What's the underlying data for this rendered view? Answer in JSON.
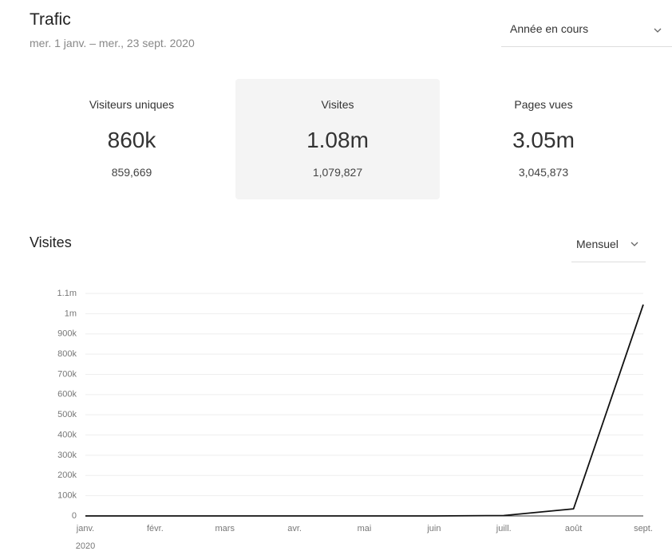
{
  "header": {
    "title": "Trafic",
    "subtitle": "mer. 1 janv. – mer., 23 sept. 2020",
    "range_select": "Année en cours"
  },
  "stats": [
    {
      "label": "Visiteurs uniques",
      "short": "860k",
      "exact": "859,669"
    },
    {
      "label": "Visites",
      "short": "1.08m",
      "exact": "1,079,827"
    },
    {
      "label": "Pages vues",
      "short": "3.05m",
      "exact": "3,045,873"
    }
  ],
  "section": {
    "title": "Visites",
    "period_select": "Mensuel"
  },
  "chart_data": {
    "type": "line",
    "categories": [
      "janv.",
      "févr.",
      "mars",
      "avr.",
      "mai",
      "juin",
      "juill.",
      "août",
      "sept."
    ],
    "year_label": "2020",
    "series": [
      {
        "name": "Visites",
        "color": "#111111",
        "values": [
          0,
          0,
          0,
          0,
          0,
          0,
          2000,
          35000,
          1045000
        ]
      }
    ],
    "ylim": [
      0,
      1100000
    ],
    "yticks": [
      0,
      {
        "value": 100000,
        "label": "100k"
      },
      {
        "value": 200000,
        "label": "200k"
      },
      {
        "value": 300000,
        "label": "300k"
      },
      {
        "value": 400000,
        "label": "400k"
      },
      {
        "value": 500000,
        "label": "500k"
      },
      {
        "value": 600000,
        "label": "600k"
      },
      {
        "value": 700000,
        "label": "700k"
      },
      {
        "value": 800000,
        "label": "800k"
      },
      {
        "value": 900000,
        "label": "900k"
      },
      {
        "value": 1000000,
        "label": "1m"
      },
      {
        "value": 1100000,
        "label": "1.1m"
      }
    ],
    "grid": true
  }
}
